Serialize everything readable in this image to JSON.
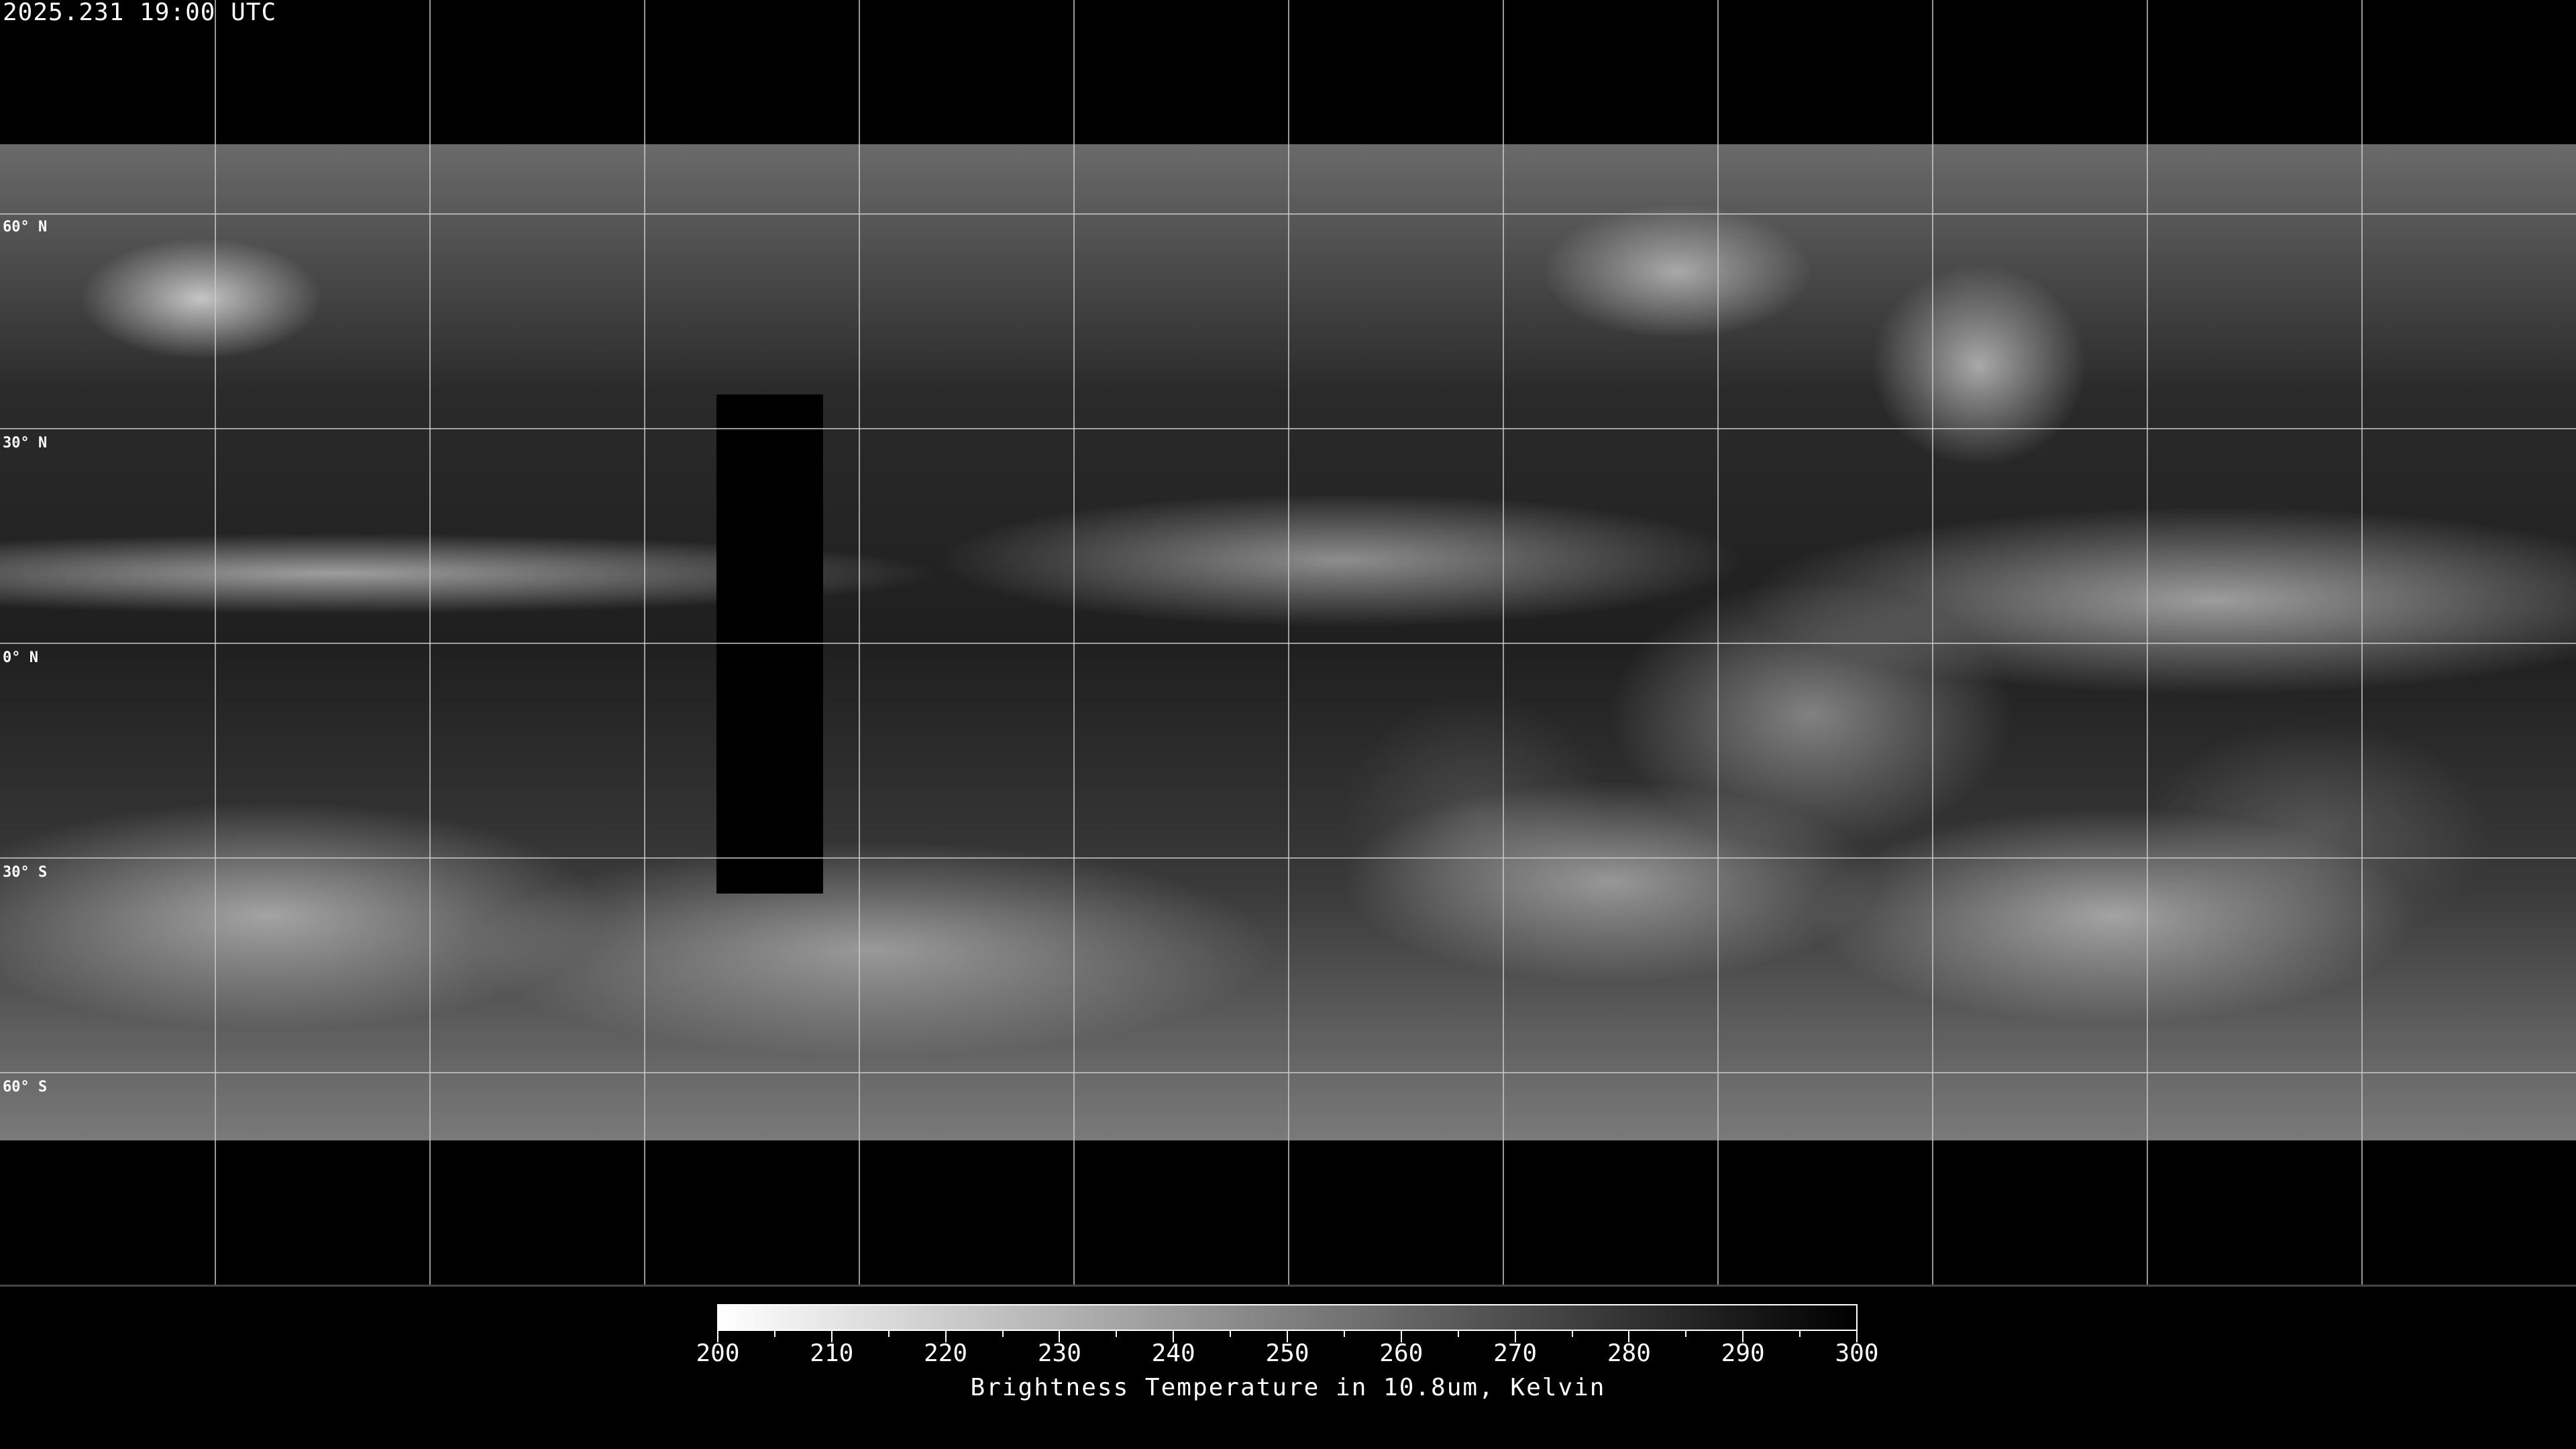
{
  "timestamp": "2025.231 19:00 UTC",
  "latitude_labels": [
    "60° N",
    "30° N",
    "0° N",
    "30° S",
    "60° S"
  ],
  "colorbar": {
    "title": "Brightness Temperature in 10.8um, Kelvin",
    "min": 200,
    "max": 300,
    "tick_labels": [
      "200",
      "210",
      "220",
      "230",
      "240",
      "250",
      "260",
      "270",
      "280",
      "290",
      "300"
    ],
    "colors": {
      "low": "#ffffff",
      "high": "#000000"
    }
  },
  "map": {
    "projection": "equirectangular",
    "grid_spacing_degrees": 30,
    "gridline_color": "#cccccc",
    "coastline_color": "#ffffff"
  }
}
